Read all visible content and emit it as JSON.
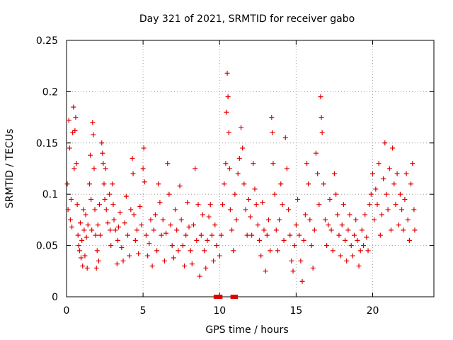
{
  "chart_data": {
    "type": "scatter",
    "title": "Day 321 of 2021, SRMTID for receiver gabo",
    "xlabel": "GPS time / hours",
    "ylabel": "SRMTID / TECUs",
    "xlim": [
      0,
      24
    ],
    "ylim": [
      0,
      0.25
    ],
    "x_ticks": [
      0,
      5,
      10,
      15,
      20
    ],
    "x_tick_labels": [
      "0",
      "5",
      "10",
      "15",
      "20"
    ],
    "y_ticks": [
      0,
      0.05,
      0.1,
      0.15,
      0.2,
      0.25
    ],
    "y_tick_labels": [
      "0",
      "0.05",
      "0.1",
      "0.15",
      "0.2",
      "0.25"
    ],
    "grid": true,
    "marker": "+",
    "marker_color": "#e00000",
    "series": [
      {
        "name": "SRMTID",
        "points": [
          [
            0.05,
            0.11
          ],
          [
            0.1,
            0.085
          ],
          [
            0.15,
            0.172
          ],
          [
            0.2,
            0.145
          ],
          [
            0.25,
            0.075
          ],
          [
            0.3,
            0.095
          ],
          [
            0.35,
            0.068
          ],
          [
            0.4,
            0.16
          ],
          [
            0.45,
            0.185
          ],
          [
            0.5,
            0.125
          ],
          [
            0.55,
            0.162
          ],
          [
            0.6,
            0.175
          ],
          [
            0.65,
            0.13
          ],
          [
            0.7,
            0.09
          ],
          [
            0.75,
            0.06
          ],
          [
            0.8,
            0.05
          ],
          [
            0.85,
            0.045
          ],
          [
            0.9,
            0.072
          ],
          [
            0.95,
            0.038
          ],
          [
            1.0,
            0.055
          ],
          [
            1.05,
            0.03
          ],
          [
            1.1,
            0.085
          ],
          [
            1.15,
            0.065
          ],
          [
            1.2,
            0.04
          ],
          [
            1.25,
            0.08
          ],
          [
            1.3,
            0.058
          ],
          [
            1.35,
            0.028
          ],
          [
            1.4,
            0.07
          ],
          [
            1.5,
            0.11
          ],
          [
            1.55,
            0.138
          ],
          [
            1.6,
            0.095
          ],
          [
            1.65,
            0.065
          ],
          [
            1.7,
            0.17
          ],
          [
            1.75,
            0.158
          ],
          [
            1.8,
            0.125
          ],
          [
            1.85,
            0.085
          ],
          [
            1.9,
            0.06
          ],
          [
            1.95,
            0.028
          ],
          [
            2.0,
            0.045
          ],
          [
            2.05,
            0.07
          ],
          [
            2.1,
            0.035
          ],
          [
            2.15,
            0.09
          ],
          [
            2.2,
            0.06
          ],
          [
            2.3,
            0.15
          ],
          [
            2.35,
            0.14
          ],
          [
            2.4,
            0.13
          ],
          [
            2.45,
            0.11
          ],
          [
            2.5,
            0.095
          ],
          [
            2.55,
            0.125
          ],
          [
            2.6,
            0.085
          ],
          [
            2.7,
            0.072
          ],
          [
            2.8,
            0.1
          ],
          [
            2.85,
            0.065
          ],
          [
            2.9,
            0.05
          ],
          [
            3.0,
            0.11
          ],
          [
            3.05,
            0.09
          ],
          [
            3.1,
            0.075
          ],
          [
            3.2,
            0.065
          ],
          [
            3.3,
            0.032
          ],
          [
            3.35,
            0.055
          ],
          [
            3.4,
            0.068
          ],
          [
            3.5,
            0.082
          ],
          [
            3.6,
            0.048
          ],
          [
            3.7,
            0.035
          ],
          [
            3.8,
            0.072
          ],
          [
            3.9,
            0.098
          ],
          [
            4.0,
            0.06
          ],
          [
            4.1,
            0.04
          ],
          [
            4.2,
            0.085
          ],
          [
            4.3,
            0.135
          ],
          [
            4.35,
            0.12
          ],
          [
            4.4,
            0.08
          ],
          [
            4.5,
            0.055
          ],
          [
            4.6,
            0.065
          ],
          [
            4.7,
            0.042
          ],
          [
            4.8,
            0.088
          ],
          [
            4.9,
            0.07
          ],
          [
            5.0,
            0.125
          ],
          [
            5.05,
            0.145
          ],
          [
            5.1,
            0.112
          ],
          [
            5.2,
            0.06
          ],
          [
            5.3,
            0.04
          ],
          [
            5.4,
            0.052
          ],
          [
            5.5,
            0.075
          ],
          [
            5.6,
            0.03
          ],
          [
            5.7,
            0.065
          ],
          [
            5.8,
            0.08
          ],
          [
            5.9,
            0.045
          ],
          [
            6.0,
            0.11
          ],
          [
            6.1,
            0.092
          ],
          [
            6.2,
            0.06
          ],
          [
            6.3,
            0.075
          ],
          [
            6.4,
            0.035
          ],
          [
            6.5,
            0.062
          ],
          [
            6.6,
            0.13
          ],
          [
            6.7,
            0.1
          ],
          [
            6.8,
            0.07
          ],
          [
            6.9,
            0.05
          ],
          [
            7.0,
            0.038
          ],
          [
            7.1,
            0.085
          ],
          [
            7.2,
            0.065
          ],
          [
            7.3,
            0.045
          ],
          [
            7.4,
            0.108
          ],
          [
            7.5,
            0.075
          ],
          [
            7.6,
            0.05
          ],
          [
            7.7,
            0.03
          ],
          [
            7.8,
            0.06
          ],
          [
            7.9,
            0.092
          ],
          [
            8.0,
            0.068
          ],
          [
            8.1,
            0.045
          ],
          [
            8.2,
            0.032
          ],
          [
            8.3,
            0.07
          ],
          [
            8.4,
            0.125
          ],
          [
            8.5,
            0.055
          ],
          [
            8.6,
            0.09
          ],
          [
            8.7,
            0.02
          ],
          [
            8.8,
            0.06
          ],
          [
            8.9,
            0.08
          ],
          [
            9.0,
            0.045
          ],
          [
            9.1,
            0.028
          ],
          [
            9.2,
            0.055
          ],
          [
            9.3,
            0.078
          ],
          [
            9.4,
            0.09
          ],
          [
            9.5,
            0.06
          ],
          [
            9.6,
            0.035
          ],
          [
            9.7,
            0.07
          ],
          [
            9.8,
            0.05
          ],
          [
            10.0,
            0.04
          ],
          [
            10.1,
            0.06
          ],
          [
            10.2,
            0.09
          ],
          [
            10.3,
            0.11
          ],
          [
            10.4,
            0.13
          ],
          [
            10.45,
            0.18
          ],
          [
            10.5,
            0.218
          ],
          [
            10.55,
            0.195
          ],
          [
            10.6,
            0.16
          ],
          [
            10.65,
            0.125
          ],
          [
            10.7,
            0.085
          ],
          [
            10.8,
            0.065
          ],
          [
            10.9,
            0.045
          ],
          [
            11.0,
            0.1
          ],
          [
            11.1,
            0.075
          ],
          [
            11.2,
            0.12
          ],
          [
            11.3,
            0.135
          ],
          [
            11.4,
            0.165
          ],
          [
            11.5,
            0.145
          ],
          [
            11.6,
            0.11
          ],
          [
            11.7,
            0.085
          ],
          [
            11.8,
            0.06
          ],
          [
            11.9,
            0.095
          ],
          [
            12.0,
            0.078
          ],
          [
            12.1,
            0.06
          ],
          [
            12.2,
            0.13
          ],
          [
            12.3,
            0.105
          ],
          [
            12.4,
            0.09
          ],
          [
            12.5,
            0.07
          ],
          [
            12.6,
            0.055
          ],
          [
            12.7,
            0.04
          ],
          [
            12.8,
            0.092
          ],
          [
            12.9,
            0.065
          ],
          [
            13.0,
            0.025
          ],
          [
            13.1,
            0.06
          ],
          [
            13.2,
            0.075
          ],
          [
            13.3,
            0.045
          ],
          [
            13.4,
            0.175
          ],
          [
            13.45,
            0.16
          ],
          [
            13.5,
            0.13
          ],
          [
            13.6,
            0.1
          ],
          [
            13.7,
            0.065
          ],
          [
            13.8,
            0.045
          ],
          [
            13.9,
            0.075
          ],
          [
            14.0,
            0.11
          ],
          [
            14.1,
            0.09
          ],
          [
            14.2,
            0.055
          ],
          [
            14.3,
            0.155
          ],
          [
            14.4,
            0.125
          ],
          [
            14.5,
            0.085
          ],
          [
            14.6,
            0.06
          ],
          [
            14.7,
            0.035
          ],
          [
            14.8,
            0.025
          ],
          [
            14.9,
            0.05
          ],
          [
            15.0,
            0.07
          ],
          [
            15.1,
            0.095
          ],
          [
            15.2,
            0.06
          ],
          [
            15.3,
            0.035
          ],
          [
            15.4,
            0.015
          ],
          [
            15.5,
            0.055
          ],
          [
            15.6,
            0.08
          ],
          [
            15.7,
            0.13
          ],
          [
            15.8,
            0.11
          ],
          [
            15.9,
            0.075
          ],
          [
            16.0,
            0.05
          ],
          [
            16.1,
            0.028
          ],
          [
            16.2,
            0.065
          ],
          [
            16.3,
            0.14
          ],
          [
            16.4,
            0.12
          ],
          [
            16.5,
            0.09
          ],
          [
            16.6,
            0.195
          ],
          [
            16.65,
            0.175
          ],
          [
            16.7,
            0.16
          ],
          [
            16.8,
            0.11
          ],
          [
            16.9,
            0.075
          ],
          [
            17.0,
            0.05
          ],
          [
            17.1,
            0.07
          ],
          [
            17.2,
            0.095
          ],
          [
            17.3,
            0.065
          ],
          [
            17.4,
            0.045
          ],
          [
            17.5,
            0.12
          ],
          [
            17.6,
            0.1
          ],
          [
            17.7,
            0.08
          ],
          [
            17.8,
            0.06
          ],
          [
            17.9,
            0.04
          ],
          [
            18.0,
            0.07
          ],
          [
            18.1,
            0.09
          ],
          [
            18.2,
            0.055
          ],
          [
            18.3,
            0.035
          ],
          [
            18.4,
            0.065
          ],
          [
            18.5,
            0.08
          ],
          [
            18.6,
            0.05
          ],
          [
            18.7,
            0.04
          ],
          [
            18.8,
            0.06
          ],
          [
            18.9,
            0.075
          ],
          [
            19.0,
            0.055
          ],
          [
            19.1,
            0.03
          ],
          [
            19.2,
            0.045
          ],
          [
            19.3,
            0.065
          ],
          [
            19.4,
            0.05
          ],
          [
            19.5,
            0.08
          ],
          [
            19.6,
            0.058
          ],
          [
            19.7,
            0.045
          ],
          [
            19.8,
            0.09
          ],
          [
            19.9,
            0.1
          ],
          [
            20.0,
            0.12
          ],
          [
            20.1,
            0.075
          ],
          [
            20.2,
            0.105
          ],
          [
            20.3,
            0.09
          ],
          [
            20.4,
            0.13
          ],
          [
            20.5,
            0.06
          ],
          [
            20.6,
            0.08
          ],
          [
            20.7,
            0.115
          ],
          [
            20.8,
            0.15
          ],
          [
            20.9,
            0.1
          ],
          [
            21.0,
            0.085
          ],
          [
            21.1,
            0.125
          ],
          [
            21.2,
            0.065
          ],
          [
            21.3,
            0.145
          ],
          [
            21.4,
            0.11
          ],
          [
            21.5,
            0.09
          ],
          [
            21.6,
            0.12
          ],
          [
            21.7,
            0.07
          ],
          [
            21.8,
            0.1
          ],
          [
            21.9,
            0.085
          ],
          [
            22.0,
            0.065
          ],
          [
            22.1,
            0.095
          ],
          [
            22.2,
            0.12
          ],
          [
            22.3,
            0.075
          ],
          [
            22.4,
            0.055
          ],
          [
            22.5,
            0.11
          ],
          [
            22.6,
            0.13
          ],
          [
            22.7,
            0.085
          ],
          [
            22.75,
            0.065
          ]
        ]
      }
    ],
    "zero_markers": [
      9.75,
      9.95,
      10.05,
      10.85,
      11.05
    ]
  }
}
